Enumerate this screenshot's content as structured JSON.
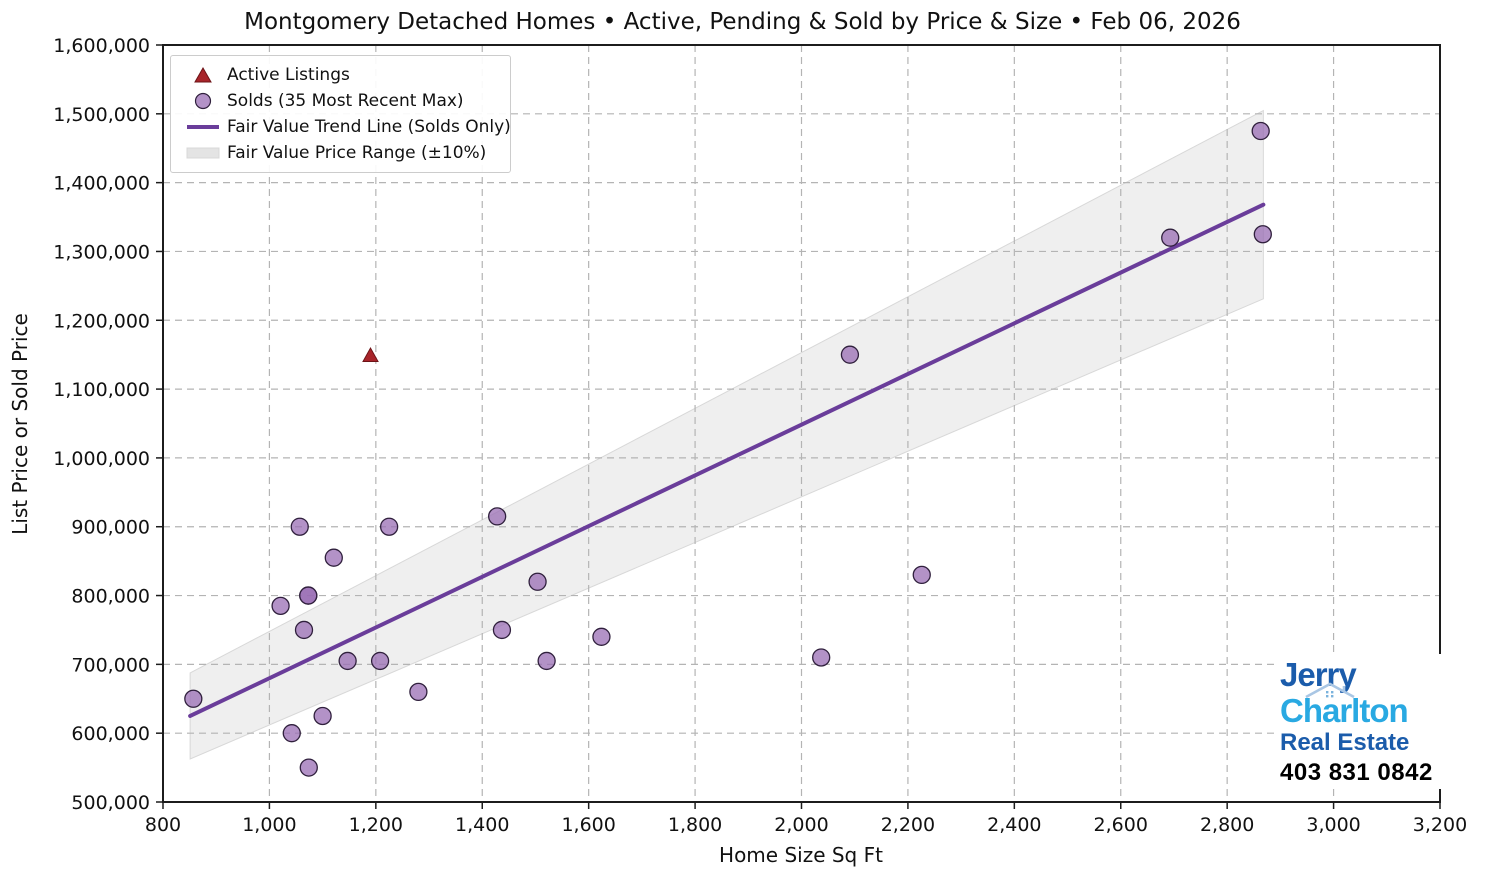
{
  "chart_data": {
    "type": "scatter",
    "title": "Montgomery Detached Homes • Active, Pending & Sold by Price & Size • Feb 06, 2026",
    "xlabel": "Home Size Sq Ft",
    "ylabel": "List Price or Sold Price",
    "xlim": [
      800,
      3200
    ],
    "ylim": [
      500000,
      1600000
    ],
    "x_ticks": [
      800,
      1000,
      1200,
      1400,
      1600,
      1800,
      2000,
      2200,
      2400,
      2600,
      2800,
      3000,
      3200
    ],
    "y_ticks": [
      500000,
      600000,
      700000,
      800000,
      900000,
      1000000,
      1100000,
      1200000,
      1300000,
      1400000,
      1500000,
      1600000
    ],
    "grid": true,
    "grid_style": "dashed",
    "legend_position": "upper-left",
    "colors": {
      "active": "#a8242a",
      "active_edge": "#6d1317",
      "sold": "#9a6eb4",
      "sold_edge": "#30203d",
      "trend": "#6a3d9a",
      "band": "#e4e4e4",
      "band_edge": "#d8d8d8",
      "grid": "#b4b4b4",
      "spine": "#1c1c1c",
      "text": "#111111"
    },
    "series": [
      {
        "name": "Active Listings",
        "kind": "scatter",
        "marker": "triangle",
        "points": [
          [
            1190,
            1148000
          ]
        ]
      },
      {
        "name": "Solds (35 Most Recent Max)",
        "kind": "scatter",
        "marker": "circle",
        "points": [
          [
            857,
            650000
          ],
          [
            1021,
            785000
          ],
          [
            1042,
            600000
          ],
          [
            1057,
            900000
          ],
          [
            1065,
            750000
          ],
          [
            1073,
            800000
          ],
          [
            1073,
            800000
          ],
          [
            1074,
            550000
          ],
          [
            1100,
            625000
          ],
          [
            1121,
            855000
          ],
          [
            1147,
            705000
          ],
          [
            1208,
            705000
          ],
          [
            1225,
            900000
          ],
          [
            1280,
            660000
          ],
          [
            1428,
            915000
          ],
          [
            1437,
            750000
          ],
          [
            1504,
            820000
          ],
          [
            1521,
            705000
          ],
          [
            1624,
            740000
          ],
          [
            2037,
            710000
          ],
          [
            2091,
            1150000
          ],
          [
            2226,
            830000
          ],
          [
            2693,
            1320000
          ],
          [
            2863,
            1475000
          ],
          [
            2867,
            1325000
          ]
        ]
      },
      {
        "name": "Fair Value Trend Line (Solds Only)",
        "kind": "line",
        "points": [
          [
            851,
            625000
          ],
          [
            2868,
            1368000
          ]
        ]
      },
      {
        "name": "Fair Value Price Range (±10%)",
        "kind": "band",
        "upper": [
          [
            851,
            687500
          ],
          [
            2868,
            1504800
          ]
        ],
        "lower": [
          [
            851,
            562500
          ],
          [
            2868,
            1231200
          ]
        ]
      }
    ]
  },
  "branding": {
    "name_line1": "Jerry",
    "name_line2": "Charlton",
    "name_line3": "Real Estate",
    "phone": "403 831 0842",
    "primary_color": "#1b5cab",
    "secondary_color": "#29a9e2",
    "phone_color": "#000000"
  }
}
